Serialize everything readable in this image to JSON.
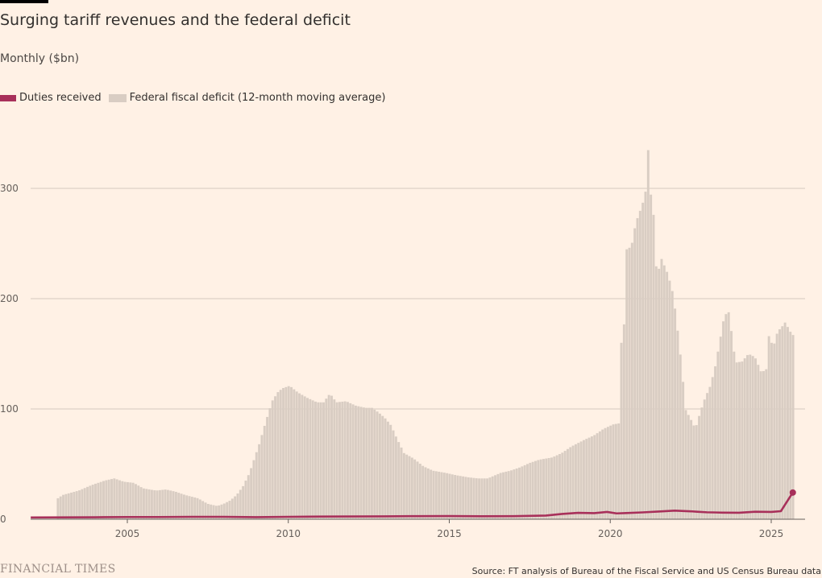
{
  "chart_data": {
    "type": "bar",
    "title": "Surging tariff revenues and the federal deficit",
    "subtitle": "Monthly ($bn)",
    "legend": [
      "Duties received",
      "Federal fiscal deficit (12-month moving average)"
    ],
    "legend_placement": "top-left",
    "grid": true,
    "ylim": [
      0,
      340
    ],
    "yticks": [
      0,
      100,
      200,
      300
    ],
    "xlim": [
      2002.0,
      2026.0
    ],
    "xticks": [
      2005,
      2010,
      2015,
      2020,
      2025
    ],
    "source": "Source: FT analysis of Bureau of the Fiscal Service and US Census Bureau data",
    "series": [
      {
        "name": "Federal fiscal deficit (12-month moving average)",
        "type": "bar",
        "color": "#d9cdc3",
        "anchors": [
          [
            2002.85,
            19
          ],
          [
            2003.0,
            22
          ],
          [
            2003.5,
            26
          ],
          [
            2003.9,
            31
          ],
          [
            2004.3,
            35
          ],
          [
            2004.6,
            37
          ],
          [
            2004.9,
            34
          ],
          [
            2005.2,
            33
          ],
          [
            2005.5,
            28
          ],
          [
            2005.9,
            26
          ],
          [
            2006.2,
            27
          ],
          [
            2006.5,
            25
          ],
          [
            2006.8,
            22
          ],
          [
            2007.2,
            19
          ],
          [
            2007.5,
            14
          ],
          [
            2007.8,
            12
          ],
          [
            2008.0,
            14
          ],
          [
            2008.2,
            17
          ],
          [
            2008.4,
            22
          ],
          [
            2008.6,
            30
          ],
          [
            2008.8,
            42
          ],
          [
            2008.95,
            55
          ],
          [
            2009.1,
            68
          ],
          [
            2009.3,
            88
          ],
          [
            2009.5,
            107
          ],
          [
            2009.7,
            116
          ],
          [
            2009.85,
            119
          ],
          [
            2010.05,
            121
          ],
          [
            2010.3,
            115
          ],
          [
            2010.6,
            110
          ],
          [
            2010.9,
            106
          ],
          [
            2011.1,
            106
          ],
          [
            2011.3,
            114
          ],
          [
            2011.5,
            106
          ],
          [
            2011.8,
            107
          ],
          [
            2012.1,
            103
          ],
          [
            2012.4,
            101
          ],
          [
            2012.6,
            101
          ],
          [
            2012.8,
            97
          ],
          [
            2013.0,
            92
          ],
          [
            2013.2,
            85
          ],
          [
            2013.35,
            75
          ],
          [
            2013.5,
            66
          ],
          [
            2013.6,
            60
          ],
          [
            2013.9,
            55
          ],
          [
            2014.2,
            48
          ],
          [
            2014.5,
            44
          ],
          [
            2014.9,
            42
          ],
          [
            2015.2,
            40
          ],
          [
            2015.6,
            38
          ],
          [
            2015.9,
            37
          ],
          [
            2016.2,
            37
          ],
          [
            2016.6,
            42
          ],
          [
            2016.9,
            44
          ],
          [
            2017.2,
            47
          ],
          [
            2017.5,
            51
          ],
          [
            2017.8,
            54
          ],
          [
            2018.2,
            56
          ],
          [
            2018.5,
            60
          ],
          [
            2018.8,
            66
          ],
          [
            2019.2,
            72
          ],
          [
            2019.5,
            76
          ],
          [
            2019.8,
            82
          ],
          [
            2020.1,
            86
          ],
          [
            2020.3,
            87
          ],
          [
            2020.35,
            160
          ],
          [
            2020.45,
            180
          ],
          [
            2020.52,
            248
          ],
          [
            2020.65,
            245
          ],
          [
            2020.75,
            262
          ],
          [
            2020.85,
            273
          ],
          [
            2021.0,
            285
          ],
          [
            2021.1,
            297
          ],
          [
            2021.17,
            342
          ],
          [
            2021.25,
            298
          ],
          [
            2021.35,
            276
          ],
          [
            2021.45,
            220
          ],
          [
            2021.6,
            236
          ],
          [
            2021.8,
            222
          ],
          [
            2021.95,
            205
          ],
          [
            2022.05,
            184
          ],
          [
            2022.2,
            145
          ],
          [
            2022.35,
            99
          ],
          [
            2022.5,
            91
          ],
          [
            2022.65,
            82
          ],
          [
            2022.8,
            97
          ],
          [
            2022.95,
            110
          ],
          [
            2023.1,
            120
          ],
          [
            2023.25,
            136
          ],
          [
            2023.4,
            160
          ],
          [
            2023.55,
            185
          ],
          [
            2023.7,
            188
          ],
          [
            2023.8,
            162
          ],
          [
            2023.9,
            142
          ],
          [
            2024.1,
            143
          ],
          [
            2024.3,
            150
          ],
          [
            2024.5,
            147
          ],
          [
            2024.7,
            133
          ],
          [
            2024.85,
            136
          ],
          [
            2024.95,
            172
          ],
          [
            2025.05,
            154
          ],
          [
            2025.2,
            170
          ],
          [
            2025.35,
            175
          ],
          [
            2025.45,
            179
          ],
          [
            2025.55,
            172
          ],
          [
            2025.65,
            168
          ],
          [
            2025.72,
            166
          ]
        ]
      },
      {
        "name": "Duties received",
        "type": "line",
        "color": "#a8305a",
        "points": [
          [
            2002.0,
            1.6
          ],
          [
            2003.0,
            1.7
          ],
          [
            2004.0,
            1.8
          ],
          [
            2005.0,
            2.0
          ],
          [
            2006.0,
            2.0
          ],
          [
            2007.0,
            2.2
          ],
          [
            2008.0,
            2.2
          ],
          [
            2009.0,
            1.9
          ],
          [
            2010.0,
            2.2
          ],
          [
            2011.0,
            2.4
          ],
          [
            2012.0,
            2.5
          ],
          [
            2013.0,
            2.6
          ],
          [
            2014.0,
            2.8
          ],
          [
            2015.0,
            2.9
          ],
          [
            2016.0,
            2.7
          ],
          [
            2017.0,
            2.8
          ],
          [
            2018.0,
            3.3
          ],
          [
            2018.5,
            4.8
          ],
          [
            2019.0,
            5.8
          ],
          [
            2019.5,
            5.5
          ],
          [
            2019.9,
            6.6
          ],
          [
            2020.2,
            5.3
          ],
          [
            2020.5,
            5.6
          ],
          [
            2021.0,
            6.2
          ],
          [
            2021.5,
            7.0
          ],
          [
            2022.0,
            7.8
          ],
          [
            2022.5,
            7.2
          ],
          [
            2022.7,
            6.8
          ],
          [
            2023.0,
            6.3
          ],
          [
            2023.5,
            6.0
          ],
          [
            2024.0,
            5.9
          ],
          [
            2024.5,
            6.8
          ],
          [
            2025.0,
            6.6
          ],
          [
            2025.3,
            7.3
          ],
          [
            2025.5,
            16.5
          ],
          [
            2025.67,
            24.2
          ]
        ]
      }
    ]
  },
  "header": {
    "title": "Surging tariff revenues and the federal deficit",
    "subtitle": "Monthly ($bn)"
  },
  "legend": {
    "duties_label": "Duties received",
    "deficit_label": "Federal fiscal deficit (12-month moving average)"
  },
  "footer": {
    "logo": "FINANCIAL TIMES",
    "source": "Source: FT analysis of Bureau of the Fiscal Service and US Census Bureau data"
  }
}
